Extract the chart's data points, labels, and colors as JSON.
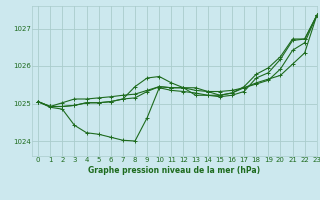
{
  "background_color": "#cce8ee",
  "grid_color": "#aacccc",
  "line_color": "#1e6b1e",
  "title": "Graphe pression niveau de la mer (hPa)",
  "xlim": [
    -0.5,
    23
  ],
  "ylim": [
    1023.6,
    1027.6
  ],
  "yticks": [
    1024,
    1025,
    1026,
    1027
  ],
  "xticks": [
    0,
    1,
    2,
    3,
    4,
    5,
    6,
    7,
    8,
    9,
    10,
    11,
    12,
    13,
    14,
    15,
    16,
    17,
    18,
    19,
    20,
    21,
    22,
    23
  ],
  "series": [
    [
      1025.05,
      1024.9,
      1024.85,
      1024.42,
      1024.22,
      1024.18,
      1024.1,
      1024.02,
      1024.0,
      1024.62,
      1025.42,
      1025.35,
      1025.32,
      1025.28,
      1025.22,
      1025.18,
      1025.22,
      1025.32,
      1025.68,
      1025.82,
      1026.18,
      1026.68,
      1026.72,
      1027.35
    ],
    [
      1025.05,
      1024.92,
      1025.02,
      1025.12,
      1025.12,
      1025.15,
      1025.18,
      1025.22,
      1025.25,
      1025.35,
      1025.45,
      1025.42,
      1025.42,
      1025.42,
      1025.32,
      1025.32,
      1025.35,
      1025.42,
      1025.55,
      1025.65,
      1025.75,
      1026.05,
      1026.35,
      1027.35
    ],
    [
      1025.05,
      1024.92,
      1024.92,
      1024.95,
      1025.02,
      1025.02,
      1025.05,
      1025.12,
      1025.15,
      1025.32,
      1025.45,
      1025.42,
      1025.42,
      1025.35,
      1025.32,
      1025.22,
      1025.28,
      1025.42,
      1025.52,
      1025.62,
      1025.92,
      1026.42,
      1026.62,
      1027.35
    ],
    [
      1025.05,
      1024.92,
      1024.92,
      1024.95,
      1025.02,
      1025.02,
      1025.05,
      1025.12,
      1025.45,
      1025.68,
      1025.72,
      1025.55,
      1025.42,
      1025.22,
      1025.22,
      1025.22,
      1025.28,
      1025.45,
      1025.78,
      1025.95,
      1026.25,
      1026.72,
      1026.72,
      1027.35
    ]
  ]
}
